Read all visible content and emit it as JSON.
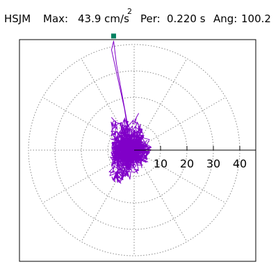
{
  "header": {
    "station": "HSJM",
    "max_label": "Max:",
    "max_value": "43.9 cm/s",
    "max_exp": "2",
    "per_label": "Per:",
    "per_value": "0.220 s",
    "ang_label": "Ang:",
    "ang_value": "100.2"
  },
  "chart_data": {
    "type": "polar-particle-motion",
    "title": "",
    "radial_unit": "cm/s2",
    "r_ticks": [
      10,
      20,
      30,
      40
    ],
    "r_tick_labels": [
      "10",
      "20",
      "30",
      "40"
    ],
    "rmax": 40,
    "angle_spokes_deg": [
      0,
      30,
      60,
      90,
      120,
      150,
      180,
      210,
      240,
      270,
      300,
      330
    ],
    "grid": "dotted",
    "max_marker": {
      "r": 43.9,
      "angle_deg": 100.2
    },
    "trace_color": "#8000c8",
    "marker_color": "#008060",
    "max_value": 43.9,
    "period_s": 0.22,
    "angle_deg": 100.2
  }
}
